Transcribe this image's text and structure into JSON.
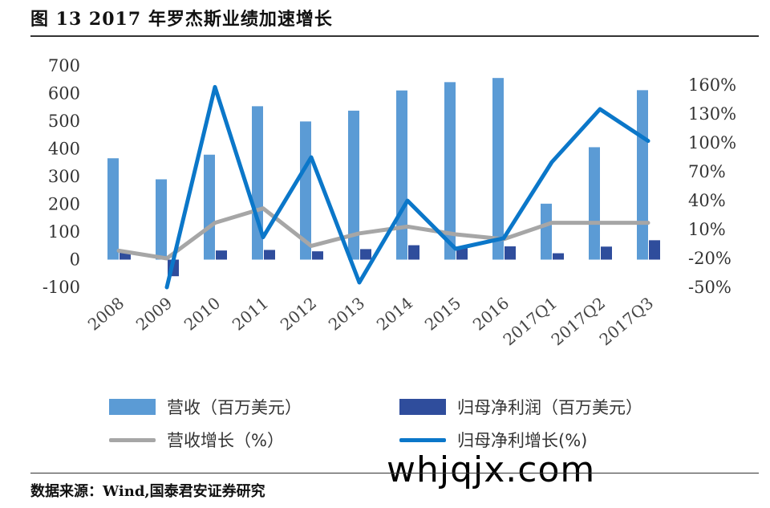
{
  "header": {
    "title": "图 13 2017 年罗杰斯业绩加速增长"
  },
  "footer": {
    "source": "数据来源：Wind,国泰君安证券研究"
  },
  "watermark": {
    "text": "whjqjx.com"
  },
  "colors": {
    "revenue": "#5b9bd5",
    "net_profit": "#2f4d9c",
    "revenue_growth": "#a6a6a6",
    "profit_growth": "#0b77c9"
  },
  "legend": {
    "revenue": "营收（百万美元）",
    "net_profit": "归母净利润（百万美元）",
    "revenue_growth": "营收增长（%）",
    "profit_growth": "归母净利增长(%)"
  },
  "chart_data": {
    "type": "bar",
    "categories": [
      "2008",
      "2009",
      "2010",
      "2011",
      "2012",
      "2013",
      "2014",
      "2015",
      "2016",
      "2017Q1",
      "2017Q2",
      "2017Q3"
    ],
    "y_left": {
      "ylim": [
        -100,
        700
      ],
      "ticks": [
        "-100",
        "0",
        "100",
        "200",
        "300",
        "400",
        "500",
        "600",
        "700"
      ]
    },
    "y_right": {
      "ylim": [
        -50,
        160
      ],
      "ticks": [
        "-50%",
        "-20%",
        "10%",
        "40%",
        "70%",
        "100%",
        "130%",
        "160%"
      ]
    },
    "series": [
      {
        "name": "营收（百万美元）",
        "type": "bar",
        "axis": "left",
        "values": [
          366,
          290,
          379,
          554,
          499,
          538,
          611,
          641,
          656,
          202,
          406,
          612
        ]
      },
      {
        "name": "归母净利润（百万美元）",
        "type": "bar",
        "axis": "left",
        "values": [
          27,
          -60,
          33,
          35,
          30,
          38,
          52,
          41,
          48,
          23,
          47,
          70
        ]
      },
      {
        "name": "营收增长（%）",
        "type": "line",
        "axis": "right",
        "values": [
          -12,
          -20,
          17,
          32,
          -7,
          6,
          13,
          5,
          0,
          17,
          17,
          17
        ]
      },
      {
        "name": "归母净利增长(%)",
        "type": "line",
        "axis": "right",
        "values": [
          null,
          -50,
          158,
          2,
          85,
          -45,
          40,
          -10,
          1,
          80,
          135,
          102
        ]
      }
    ],
    "grid": false,
    "legend_position": "bottom"
  }
}
